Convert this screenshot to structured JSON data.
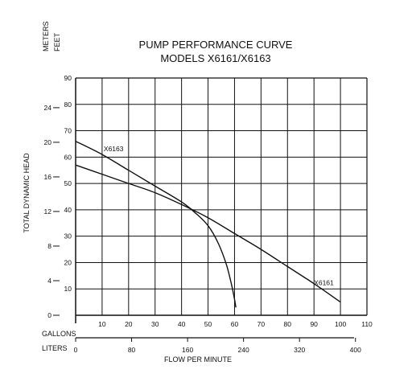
{
  "chart_data": {
    "type": "line",
    "title": "PUMP PERFORMANCE CURVE",
    "subtitle": "MODELS X6161/X6163",
    "ylabel": "TOTAL DYNAMIC HEAD",
    "xlabel": "FLOW PER MINUTE",
    "units": {
      "left_top": "METERS",
      "left_bottom": "FEET",
      "bottom_top": "GALLONS",
      "bottom_bottom": "LITERS"
    },
    "feet_axis": {
      "ticks": [
        10,
        20,
        30,
        40,
        50,
        60,
        70,
        80,
        90
      ],
      "ylim": [
        0,
        90
      ]
    },
    "meters_axis": {
      "ticks": [
        0,
        4,
        8,
        12,
        16,
        20,
        24
      ]
    },
    "gallons_axis": {
      "ticks": [
        10,
        20,
        30,
        40,
        50,
        60,
        70,
        80,
        90,
        100,
        110
      ],
      "xlim": [
        0,
        110
      ]
    },
    "liters_axis": {
      "ticks": [
        0,
        80,
        160,
        240,
        320,
        400
      ]
    },
    "grid": true,
    "series": [
      {
        "name": "X6163",
        "x": [
          0,
          10,
          20,
          30,
          40,
          45,
          50,
          54,
          57,
          59,
          60,
          60.5
        ],
        "y": [
          66,
          61,
          55,
          49,
          43,
          39,
          34,
          27,
          19,
          11,
          6,
          3
        ]
      },
      {
        "name": "X6161",
        "x": [
          0,
          10,
          20,
          30,
          40,
          50,
          60,
          70,
          80,
          90,
          100
        ],
        "y": [
          57,
          53.5,
          50,
          46.5,
          42,
          37,
          31,
          25,
          18.5,
          12,
          5
        ]
      }
    ]
  }
}
